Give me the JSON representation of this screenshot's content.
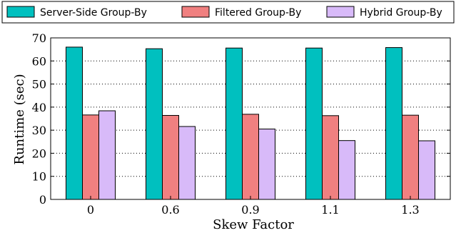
{
  "chart_data": {
    "type": "bar",
    "categories": [
      "0",
      "0.6",
      "0.9",
      "1.1",
      "1.3"
    ],
    "series": [
      {
        "name": "Server-Side Group-By",
        "values": [
          66.0,
          65.3,
          65.6,
          65.6,
          65.8
        ],
        "color": "#00c0bf"
      },
      {
        "name": "Filtered Group-By",
        "values": [
          36.6,
          36.4,
          36.9,
          36.3,
          36.5
        ],
        "color": "#f08080"
      },
      {
        "name": "Hybrid Group-By",
        "values": [
          38.4,
          31.6,
          30.5,
          25.5,
          25.4
        ],
        "color": "#d8baf9"
      }
    ],
    "xlabel": "Skew Factor",
    "ylabel": "Runtime (sec)",
    "ylim": [
      0,
      70
    ],
    "yticks": [
      0,
      10,
      20,
      30,
      40,
      50,
      60,
      70
    ],
    "grid": "horizontal dotted",
    "legend_position": "top"
  }
}
